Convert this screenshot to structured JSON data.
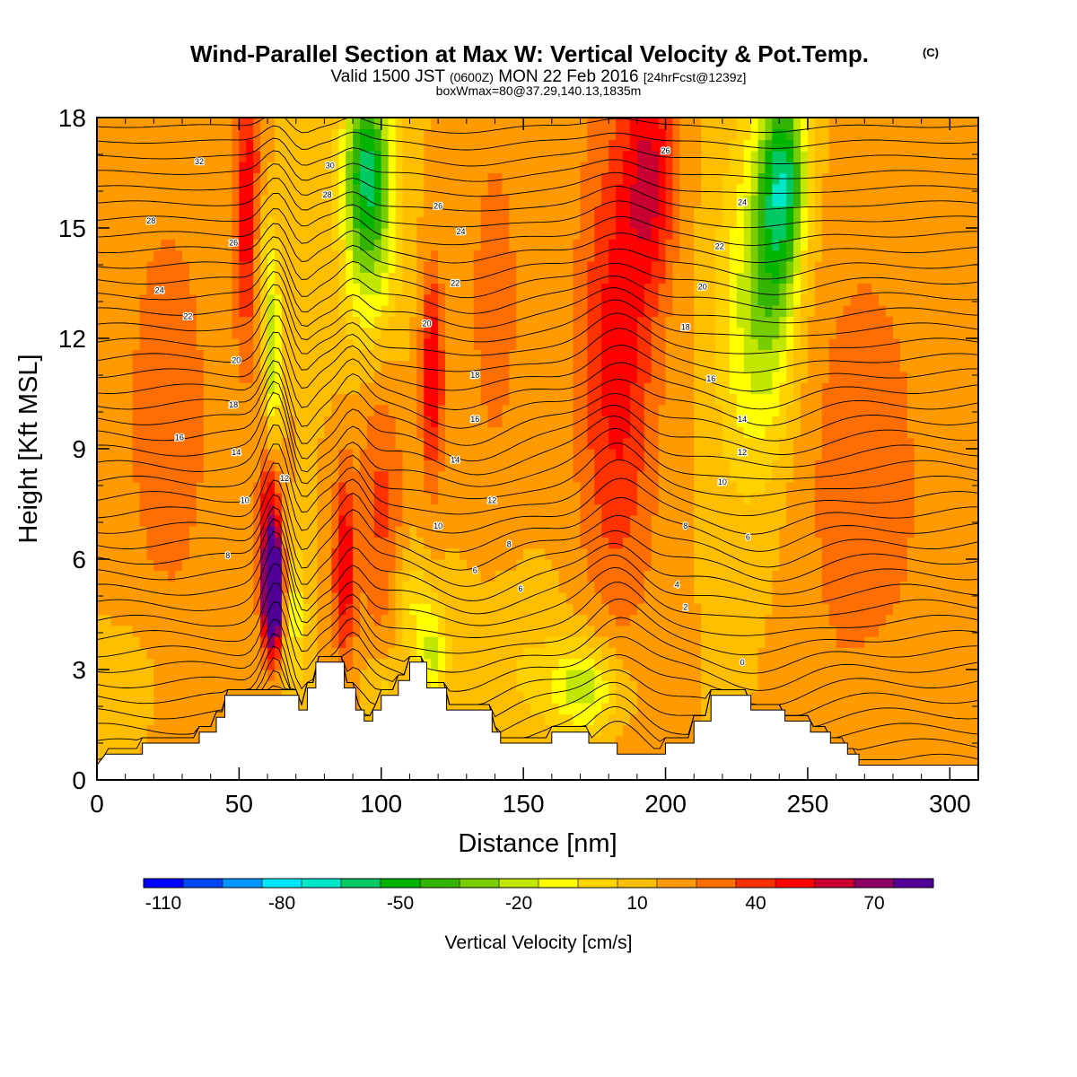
{
  "chart_data": {
    "type": "heatmap",
    "title": "Wind-Parallel Section at Max W: Vertical Velocity & Pot.Temp.",
    "copyright_mark": "(C)",
    "subtitle": {
      "valid_prefix": "Valid 1500 JST",
      "utc": "(0600Z)",
      "date": "MON 22 Feb 2016",
      "forecast": "[24hrFcst@1239z]"
    },
    "box_info": "boxWmax=80@37.29,140.13,1835m",
    "xlabel": "Distance [nm]",
    "ylabel": "Height [Kft MSL]",
    "xlim": [
      0,
      310
    ],
    "ylim": [
      0,
      18
    ],
    "x_ticks": [
      "0",
      "50",
      "100",
      "150",
      "200",
      "250",
      "300"
    ],
    "y_ticks": [
      "0",
      "3",
      "6",
      "9",
      "12",
      "15",
      "18"
    ],
    "colorbar": {
      "label": "Vertical Velocity [cm/s]",
      "tick_labels": [
        "-110",
        "-80",
        "-50",
        "-20",
        "10",
        "40",
        "70"
      ],
      "colors": [
        "#0000ff",
        "#0046ff",
        "#0096ff",
        "#00e6ff",
        "#00e6c8",
        "#00c864",
        "#00b400",
        "#32b400",
        "#78cd00",
        "#c3e600",
        "#ffff00",
        "#ffd200",
        "#ffbe00",
        "#ff9b00",
        "#ff6e00",
        "#ff3200",
        "#ff0000",
        "#c80032",
        "#8c0064",
        "#500096"
      ]
    },
    "terrain_profile_kft": [
      [
        0,
        0.4
      ],
      [
        3,
        0.7
      ],
      [
        16,
        0.7
      ],
      [
        16,
        1.0
      ],
      [
        36,
        1.0
      ],
      [
        36,
        1.3
      ],
      [
        42,
        1.3
      ],
      [
        42,
        1.7
      ],
      [
        45,
        1.7
      ],
      [
        45,
        2.3
      ],
      [
        71,
        2.3
      ],
      [
        71,
        1.9
      ],
      [
        74,
        1.9
      ],
      [
        74,
        2.5
      ],
      [
        77,
        2.5
      ],
      [
        77,
        3.2
      ],
      [
        87,
        3.2
      ],
      [
        87,
        2.5
      ],
      [
        91,
        2.5
      ],
      [
        91,
        1.9
      ],
      [
        94,
        1.9
      ],
      [
        94,
        1.6
      ],
      [
        97,
        1.6
      ],
      [
        97,
        1.9
      ],
      [
        100,
        1.9
      ],
      [
        100,
        2.3
      ],
      [
        106,
        2.3
      ],
      [
        106,
        2.7
      ],
      [
        110,
        2.7
      ],
      [
        110,
        3.2
      ],
      [
        116,
        3.2
      ],
      [
        116,
        2.5
      ],
      [
        123,
        2.5
      ],
      [
        123,
        1.9
      ],
      [
        139,
        1.9
      ],
      [
        139,
        1.3
      ],
      [
        142,
        1.3
      ],
      [
        142,
        1.0
      ],
      [
        160,
        1.0
      ],
      [
        160,
        1.3
      ],
      [
        173,
        1.3
      ],
      [
        173,
        1.0
      ],
      [
        183,
        1.0
      ],
      [
        183,
        0.7
      ],
      [
        200,
        0.7
      ],
      [
        200,
        1.0
      ],
      [
        210,
        1.0
      ],
      [
        210,
        1.6
      ],
      [
        216,
        1.6
      ],
      [
        216,
        2.3
      ],
      [
        230,
        2.3
      ],
      [
        230,
        1.9
      ],
      [
        242,
        1.9
      ],
      [
        242,
        1.6
      ],
      [
        251,
        1.6
      ],
      [
        251,
        1.3
      ],
      [
        258,
        1.3
      ],
      [
        258,
        1.0
      ],
      [
        264,
        1.0
      ],
      [
        264,
        0.7
      ],
      [
        268,
        0.7
      ],
      [
        268,
        0.4
      ],
      [
        310,
        0.4
      ]
    ],
    "w_cells": [
      {
        "x": 62,
        "y": 5.0,
        "w": 85,
        "sx": 3,
        "sy": 1.4
      },
      {
        "x": 61,
        "y": 6.4,
        "w": 55,
        "sx": 4,
        "sy": 2.6
      },
      {
        "x": 87,
        "y": 5.8,
        "w": 40,
        "sx": 4,
        "sy": 2.6
      },
      {
        "x": 118,
        "y": 11.0,
        "w": 40,
        "sx": 4,
        "sy": 3.0
      },
      {
        "x": 53,
        "y": 15.5,
        "w": 38,
        "sx": 5,
        "sy": 4.0
      },
      {
        "x": 183,
        "y": 11.5,
        "w": 35,
        "sx": 14,
        "sy": 7.0
      },
      {
        "x": 195,
        "y": 16.5,
        "w": 35,
        "sx": 9,
        "sy": 3.0
      },
      {
        "x": 100,
        "y": 7.5,
        "w": 22,
        "sx": 8,
        "sy": 4.0
      },
      {
        "x": 270,
        "y": 8.0,
        "w": 18,
        "sx": 22,
        "sy": 7.0
      },
      {
        "x": 140,
        "y": 13.0,
        "w": 16,
        "sx": 10,
        "sy": 5.0
      },
      {
        "x": 25,
        "y": 10.0,
        "w": 18,
        "sx": 16,
        "sy": 6.0
      },
      {
        "x": 70,
        "y": 4.5,
        "w": -25,
        "sx": 4,
        "sy": 2.0
      },
      {
        "x": 62,
        "y": 11.5,
        "w": -40,
        "sx": 3,
        "sy": 3.0
      },
      {
        "x": 58,
        "y": 14.0,
        "w": -22,
        "sx": 3,
        "sy": 2.0
      },
      {
        "x": 95,
        "y": 17.0,
        "w": -55,
        "sx": 8,
        "sy": 2.5
      },
      {
        "x": 96,
        "y": 14.5,
        "w": -35,
        "sx": 10,
        "sy": 3.0
      },
      {
        "x": 242,
        "y": 16.5,
        "w": -55,
        "sx": 8,
        "sy": 2.5
      },
      {
        "x": 238,
        "y": 14.0,
        "w": -40,
        "sx": 9,
        "sy": 4.0
      },
      {
        "x": 228,
        "y": 12.5,
        "w": -25,
        "sx": 11,
        "sy": 5.0
      },
      {
        "x": 172,
        "y": 2.5,
        "w": -35,
        "sx": 12,
        "sy": 1.2
      },
      {
        "x": 118,
        "y": 3.5,
        "w": -30,
        "sx": 5,
        "sy": 1.5
      },
      {
        "x": 110,
        "y": 4.8,
        "w": -20,
        "sx": 6,
        "sy": 1.5
      },
      {
        "x": 100,
        "y": 2.5,
        "w": -15,
        "sx": 6,
        "sy": 1.0
      },
      {
        "x": 150,
        "y": 3.0,
        "w": -10,
        "sx": 25,
        "sy": 2.0
      },
      {
        "x": 14,
        "y": 3.0,
        "w": -5,
        "sx": 12,
        "sy": 1.8
      },
      {
        "x": 280,
        "y": 2.5,
        "w": -6,
        "sx": 14,
        "sy": 1.8
      }
    ],
    "theta_labels": [
      {
        "label": "32",
        "x": 36,
        "y": 16.8
      },
      {
        "label": "28",
        "x": 19,
        "y": 15.2
      },
      {
        "label": "26",
        "x": 48,
        "y": 14.6
      },
      {
        "label": "24",
        "x": 22,
        "y": 13.3
      },
      {
        "label": "22",
        "x": 32,
        "y": 12.6
      },
      {
        "label": "20",
        "x": 49,
        "y": 11.4
      },
      {
        "label": "18",
        "x": 48,
        "y": 10.2
      },
      {
        "label": "16",
        "x": 29,
        "y": 9.3
      },
      {
        "label": "14",
        "x": 49,
        "y": 8.9
      },
      {
        "label": "12",
        "x": 66,
        "y": 8.2
      },
      {
        "label": "10",
        "x": 52,
        "y": 7.6
      },
      {
        "label": "8",
        "x": 46,
        "y": 6.1
      },
      {
        "label": "30",
        "x": 82,
        "y": 16.7
      },
      {
        "label": "28",
        "x": 81,
        "y": 15.9
      },
      {
        "label": "26",
        "x": 120,
        "y": 15.6
      },
      {
        "label": "24",
        "x": 128,
        "y": 14.9
      },
      {
        "label": "22",
        "x": 126,
        "y": 13.5
      },
      {
        "label": "20",
        "x": 116,
        "y": 12.4
      },
      {
        "label": "18",
        "x": 133,
        "y": 11.0
      },
      {
        "label": "16",
        "x": 133,
        "y": 9.8
      },
      {
        "label": "14",
        "x": 126,
        "y": 8.7
      },
      {
        "label": "12",
        "x": 139,
        "y": 7.6
      },
      {
        "label": "10",
        "x": 120,
        "y": 6.9
      },
      {
        "label": "8",
        "x": 145,
        "y": 6.4
      },
      {
        "label": "6",
        "x": 133,
        "y": 5.7
      },
      {
        "label": "6",
        "x": 149,
        "y": 5.2
      },
      {
        "label": "26",
        "x": 200,
        "y": 17.1
      },
      {
        "label": "24",
        "x": 227,
        "y": 15.7
      },
      {
        "label": "22",
        "x": 219,
        "y": 14.5
      },
      {
        "label": "20",
        "x": 213,
        "y": 13.4
      },
      {
        "label": "18",
        "x": 207,
        "y": 12.3
      },
      {
        "label": "16",
        "x": 216,
        "y": 10.9
      },
      {
        "label": "14",
        "x": 227,
        "y": 9.8
      },
      {
        "label": "12",
        "x": 227,
        "y": 8.9
      },
      {
        "label": "10",
        "x": 220,
        "y": 8.1
      },
      {
        "label": "8",
        "x": 207,
        "y": 6.9
      },
      {
        "label": "6",
        "x": 229,
        "y": 6.6
      },
      {
        "label": "4",
        "x": 204,
        "y": 5.3
      },
      {
        "label": "2",
        "x": 207,
        "y": 4.7
      },
      {
        "label": "0",
        "x": 227,
        "y": 3.2
      }
    ]
  }
}
